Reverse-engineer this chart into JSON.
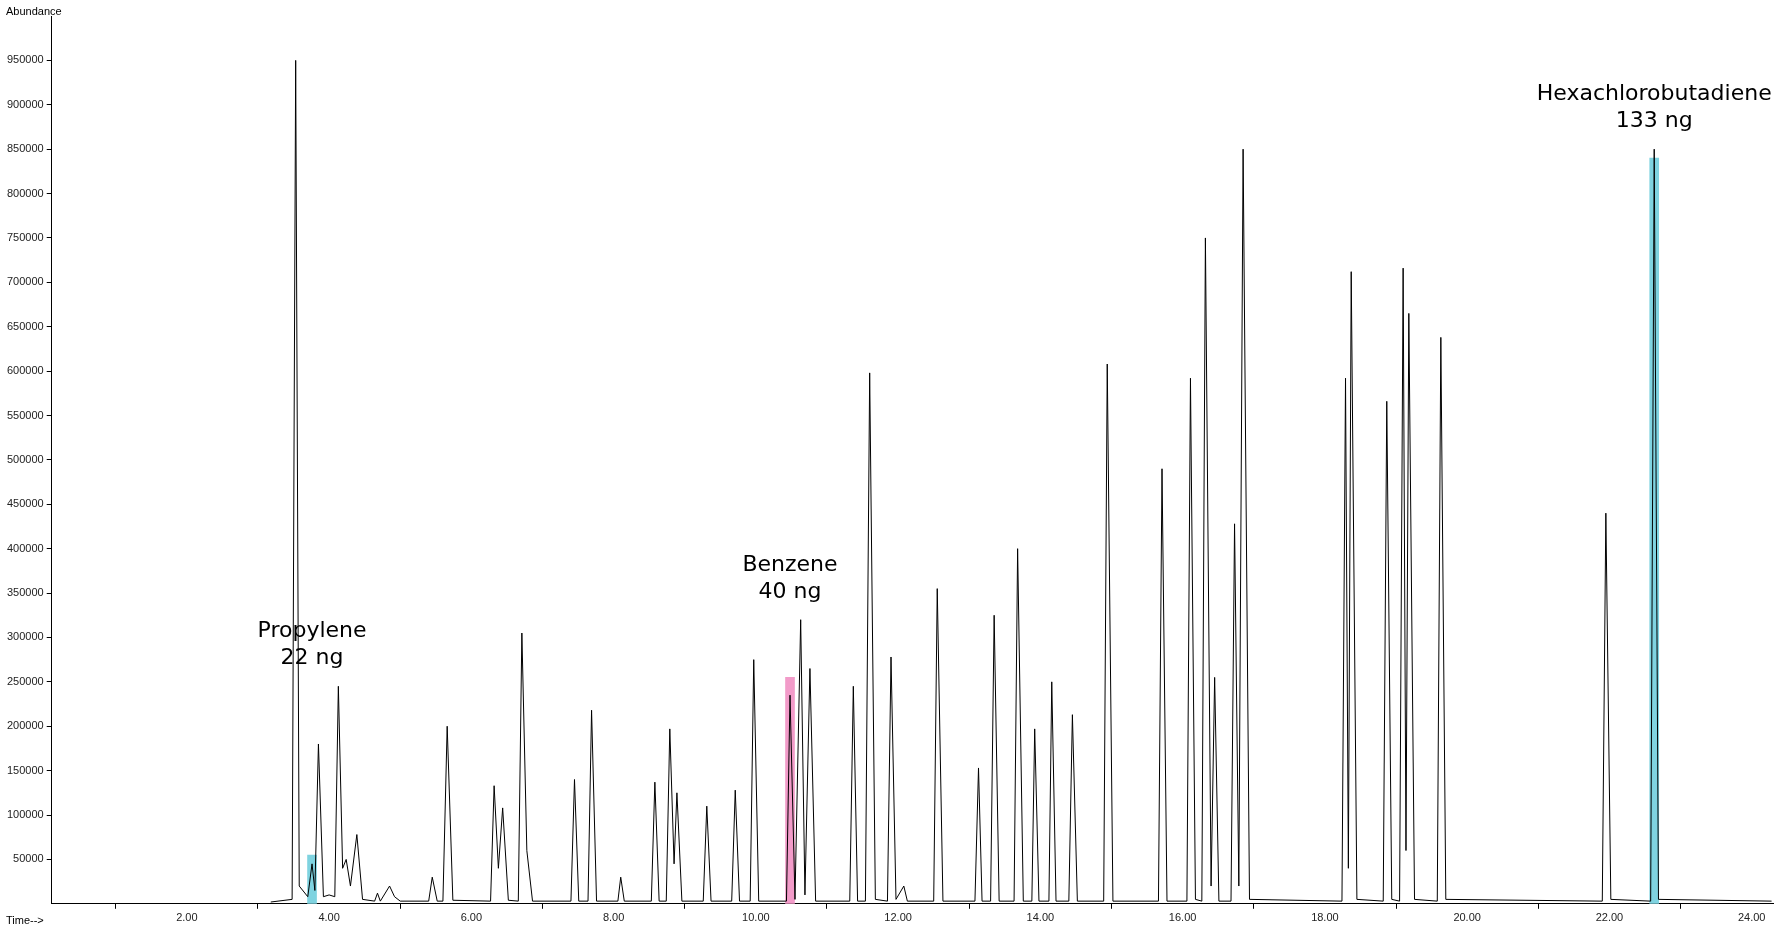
{
  "chart_data": {
    "type": "line",
    "xlabel": "Time-->",
    "ylabel": "Abundance",
    "xlim": [
      0.1,
      24.3
    ],
    "ylim": [
      0,
      1000000
    ],
    "xticks": [
      {
        "value": 2,
        "label": "2.00"
      },
      {
        "value": 4,
        "label": "4.00"
      },
      {
        "value": 6,
        "label": "6.00"
      },
      {
        "value": 8,
        "label": "8.00"
      },
      {
        "value": 10,
        "label": "10.00"
      },
      {
        "value": 12,
        "label": "12.00"
      },
      {
        "value": 14,
        "label": "14.00"
      },
      {
        "value": 16,
        "label": "16.00"
      },
      {
        "value": 18,
        "label": "18.00"
      },
      {
        "value": 20,
        "label": "20.00"
      },
      {
        "value": 22,
        "label": "22.00"
      },
      {
        "value": 24,
        "label": "24.00"
      }
    ],
    "yticks": [
      50000,
      100000,
      150000,
      200000,
      250000,
      300000,
      350000,
      400000,
      450000,
      500000,
      550000,
      600000,
      650000,
      700000,
      750000,
      800000,
      850000,
      900000,
      950000
    ],
    "grid": false,
    "legend": false,
    "marker": "none",
    "line_style": "solid",
    "series": [
      {
        "type": "bar",
        "x": [
          3.76,
          10.48,
          22.63
        ],
        "values": [
          55000,
          255000,
          840000
        ],
        "colors": [
          "#7fd3e0",
          "#f29bc9",
          "#7fd3e0"
        ]
      },
      {
        "color": "#000000",
        "x": [
          3.18,
          3.48,
          3.53,
          3.58,
          3.7,
          3.76,
          3.8,
          3.85,
          3.92,
          4.0,
          4.08,
          4.13,
          4.19,
          4.24,
          4.3,
          4.39,
          4.47,
          4.64,
          4.68,
          4.72,
          4.85,
          4.92,
          5.0,
          5.4,
          5.45,
          5.52,
          5.6,
          5.66,
          5.74,
          6.27,
          6.32,
          6.38,
          6.44,
          6.52,
          6.66,
          6.71,
          6.78,
          6.86,
          7.4,
          7.45,
          7.51,
          7.64,
          7.69,
          7.76,
          8.06,
          8.1,
          8.15,
          8.53,
          8.58,
          8.64,
          8.74,
          8.79,
          8.85,
          8.89,
          8.96,
          9.26,
          9.31,
          9.37,
          9.66,
          9.71,
          9.77,
          9.92,
          9.97,
          10.04,
          10.43,
          10.48,
          10.55,
          10.63,
          10.69,
          10.76,
          10.84,
          11.32,
          11.37,
          11.43,
          11.54,
          11.6,
          11.68,
          11.85,
          11.9,
          11.97,
          12.08,
          12.13,
          12.5,
          12.55,
          12.63,
          13.08,
          13.13,
          13.18,
          13.3,
          13.35,
          13.42,
          13.63,
          13.68,
          13.76,
          13.88,
          13.92,
          13.98,
          14.12,
          14.16,
          14.22,
          14.4,
          14.45,
          14.52,
          14.89,
          14.94,
          15.02,
          15.66,
          15.71,
          15.78,
          16.06,
          16.11,
          16.18,
          16.27,
          16.32,
          16.4,
          16.45,
          16.51,
          16.68,
          16.73,
          16.79,
          16.85,
          16.94,
          18.24,
          18.29,
          18.33,
          18.37,
          18.45,
          18.82,
          18.87,
          18.94,
          19.05,
          19.1,
          19.14,
          19.18,
          19.26,
          19.58,
          19.63,
          19.7,
          21.9,
          21.95,
          22.02,
          22.58,
          22.63,
          22.69,
          24.28
        ],
        "values": [
          2000,
          5000,
          950000,
          20000,
          8000,
          45000,
          15000,
          180000,
          8000,
          10000,
          8000,
          245000,
          40000,
          50000,
          20000,
          78000,
          5000,
          3000,
          12000,
          3000,
          20000,
          8000,
          3000,
          3000,
          30000,
          3000,
          3000,
          200000,
          4000,
          3000,
          133000,
          40000,
          108000,
          4000,
          3000,
          305000,
          60000,
          3000,
          3000,
          140000,
          3000,
          3000,
          218000,
          3000,
          3000,
          30000,
          3000,
          3000,
          137000,
          3000,
          3000,
          197000,
          45000,
          125000,
          3000,
          3000,
          110000,
          3000,
          3000,
          128000,
          3000,
          3000,
          275000,
          3000,
          3000,
          235000,
          5000,
          320000,
          10000,
          265000,
          3000,
          3000,
          245000,
          3000,
          3000,
          598000,
          5000,
          3000,
          278000,
          5000,
          20000,
          3000,
          3000,
          355000,
          3000,
          3000,
          153000,
          3000,
          3000,
          325000,
          3000,
          3000,
          400000,
          3000,
          3000,
          197000,
          3000,
          3000,
          250000,
          3000,
          3000,
          213000,
          3000,
          3000,
          608000,
          3000,
          3000,
          490000,
          3000,
          3000,
          592000,
          5000,
          3000,
          750000,
          20000,
          255000,
          3000,
          3000,
          428000,
          20000,
          850000,
          5000,
          3000,
          592000,
          40000,
          712000,
          5000,
          3000,
          566000,
          5000,
          3000,
          716000,
          60000,
          665000,
          5000,
          3000,
          638000,
          5000,
          3000,
          440000,
          5000,
          3000,
          850000,
          5000,
          3000
        ]
      }
    ],
    "annotations": [
      "Propylene\n22 ng",
      "Benzene\n40 ng",
      "Hexachlorobutadiene\n133 ng"
    ]
  }
}
